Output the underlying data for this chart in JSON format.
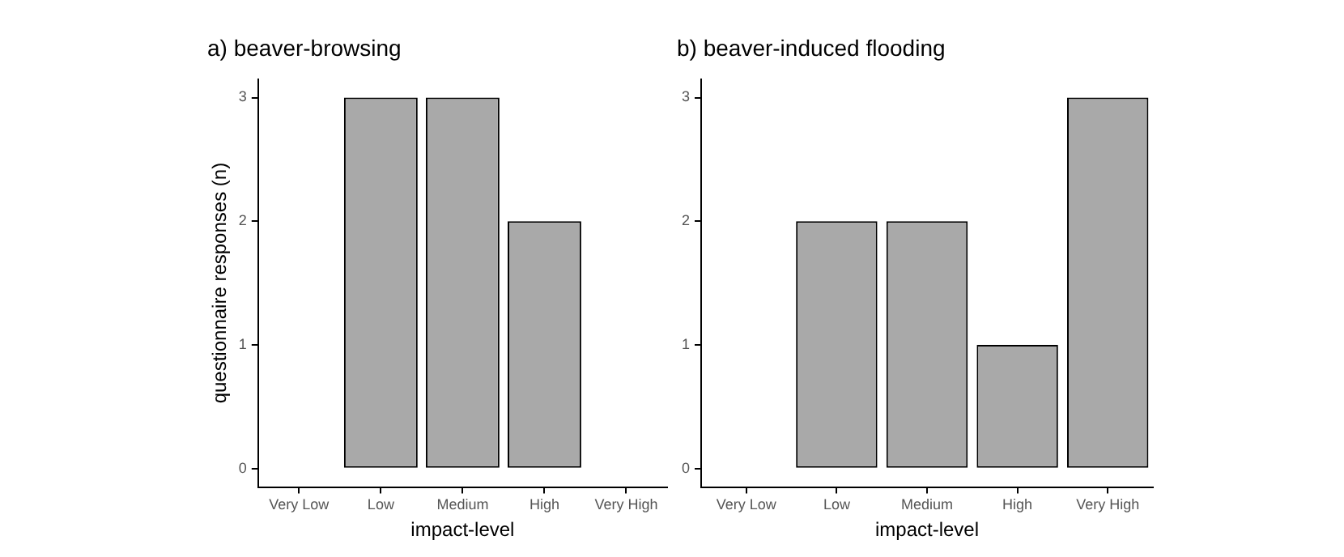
{
  "chart_data": [
    {
      "type": "bar",
      "title": "a) beaver-browsing",
      "xlabel": "impact-level",
      "ylabel": "questionnaire responses (n)",
      "categories": [
        "Very Low",
        "Low",
        "Medium",
        "High",
        "Very High"
      ],
      "values": [
        0,
        3,
        3,
        2,
        0
      ],
      "color": "#a9a9a9",
      "ylim": [
        -0.15,
        3.15
      ],
      "yticks": [
        0,
        1,
        2,
        3
      ],
      "grid": false,
      "legend": false
    },
    {
      "type": "bar",
      "title": "b) beaver-induced flooding",
      "xlabel": "impact-level",
      "categories": [
        "Very Low",
        "Low",
        "Medium",
        "High",
        "Very High"
      ],
      "values": [
        0,
        2,
        2,
        1,
        3
      ],
      "color": "#a9a9a9",
      "ylim": [
        -0.15,
        3.15
      ],
      "yticks": [
        0,
        1,
        2,
        3
      ],
      "grid": false,
      "legend": false
    }
  ]
}
